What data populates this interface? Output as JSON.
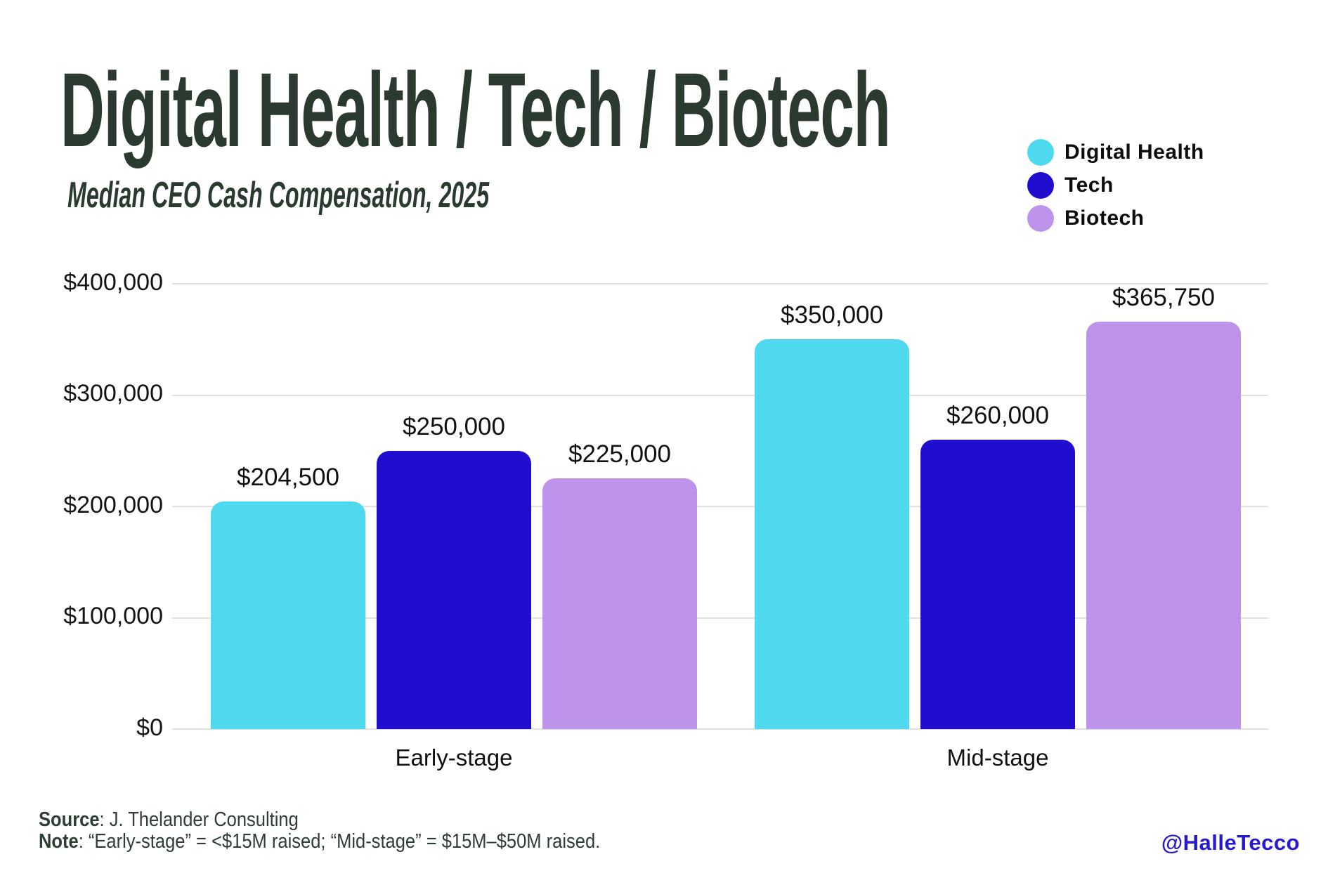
{
  "header": {
    "title": "Digital Health / Tech / Biotech",
    "subtitle": "Median CEO Cash Compensation, 2025",
    "title_color": "#2B3A2F"
  },
  "legend": [
    {
      "label": "Digital Health",
      "color": "#4ED9EF"
    },
    {
      "label": "Tech",
      "color": "#200DCE"
    },
    {
      "label": "Biotech",
      "color": "#BD93EC"
    }
  ],
  "chart_data": {
    "type": "bar",
    "categories": [
      "Early-stage",
      "Mid-stage"
    ],
    "series": [
      {
        "name": "Digital Health",
        "color": "#4ED9EF",
        "values": [
          204500,
          350000
        ],
        "labels": [
          "$204,500",
          "$350,000"
        ]
      },
      {
        "name": "Tech",
        "color": "#200DCE",
        "values": [
          250000,
          260000
        ],
        "labels": [
          "$250,000",
          "$260,000"
        ]
      },
      {
        "name": "Biotech",
        "color": "#BD93EC",
        "values": [
          225000,
          365750
        ],
        "labels": [
          "$225,000",
          "$365,750"
        ]
      }
    ],
    "title": "Digital Health / Tech / Biotech",
    "subtitle": "Median CEO Cash Compensation, 2025",
    "xlabel": "",
    "ylabel": "",
    "ylim": [
      0,
      400000
    ],
    "yticks": [
      "$400,000",
      "$300,000",
      "$200,000",
      "$100,000",
      "$0"
    ],
    "grid": "horizontal",
    "legend_position": "top-right"
  },
  "footer": {
    "source_label": "Source",
    "source_text": ": J. Thelander Consulting",
    "note_label": "Note",
    "note_text": ": “Early-stage” = <$15M raised; “Mid-stage” = $15M–$50M raised.",
    "handle": "@HalleTecco",
    "handle_color": "#2619D1"
  }
}
